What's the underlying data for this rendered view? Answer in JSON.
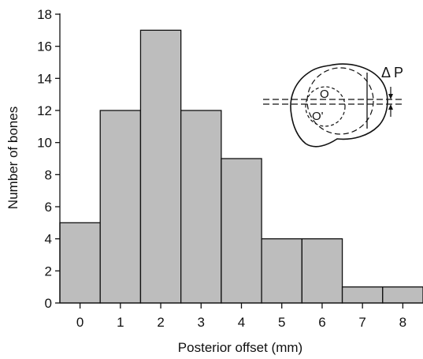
{
  "chart_data": {
    "type": "bar",
    "title": "",
    "xlabel": "Posterior offset (mm)",
    "ylabel": "Number of bones",
    "categories": [
      "0",
      "1",
      "2",
      "3",
      "4",
      "5",
      "6",
      "7",
      "8"
    ],
    "values": [
      5,
      12,
      17,
      12,
      9,
      4,
      4,
      1,
      1
    ],
    "ylim": [
      0,
      18
    ],
    "yticks": [
      0,
      2,
      4,
      6,
      8,
      10,
      12,
      14,
      16,
      18
    ],
    "grid": false,
    "legend": "none",
    "bar_color": "#bdbdbd",
    "inset": {
      "delta_label": "Δ P",
      "center_label_upper": "O",
      "center_label_lower": "O'"
    }
  }
}
